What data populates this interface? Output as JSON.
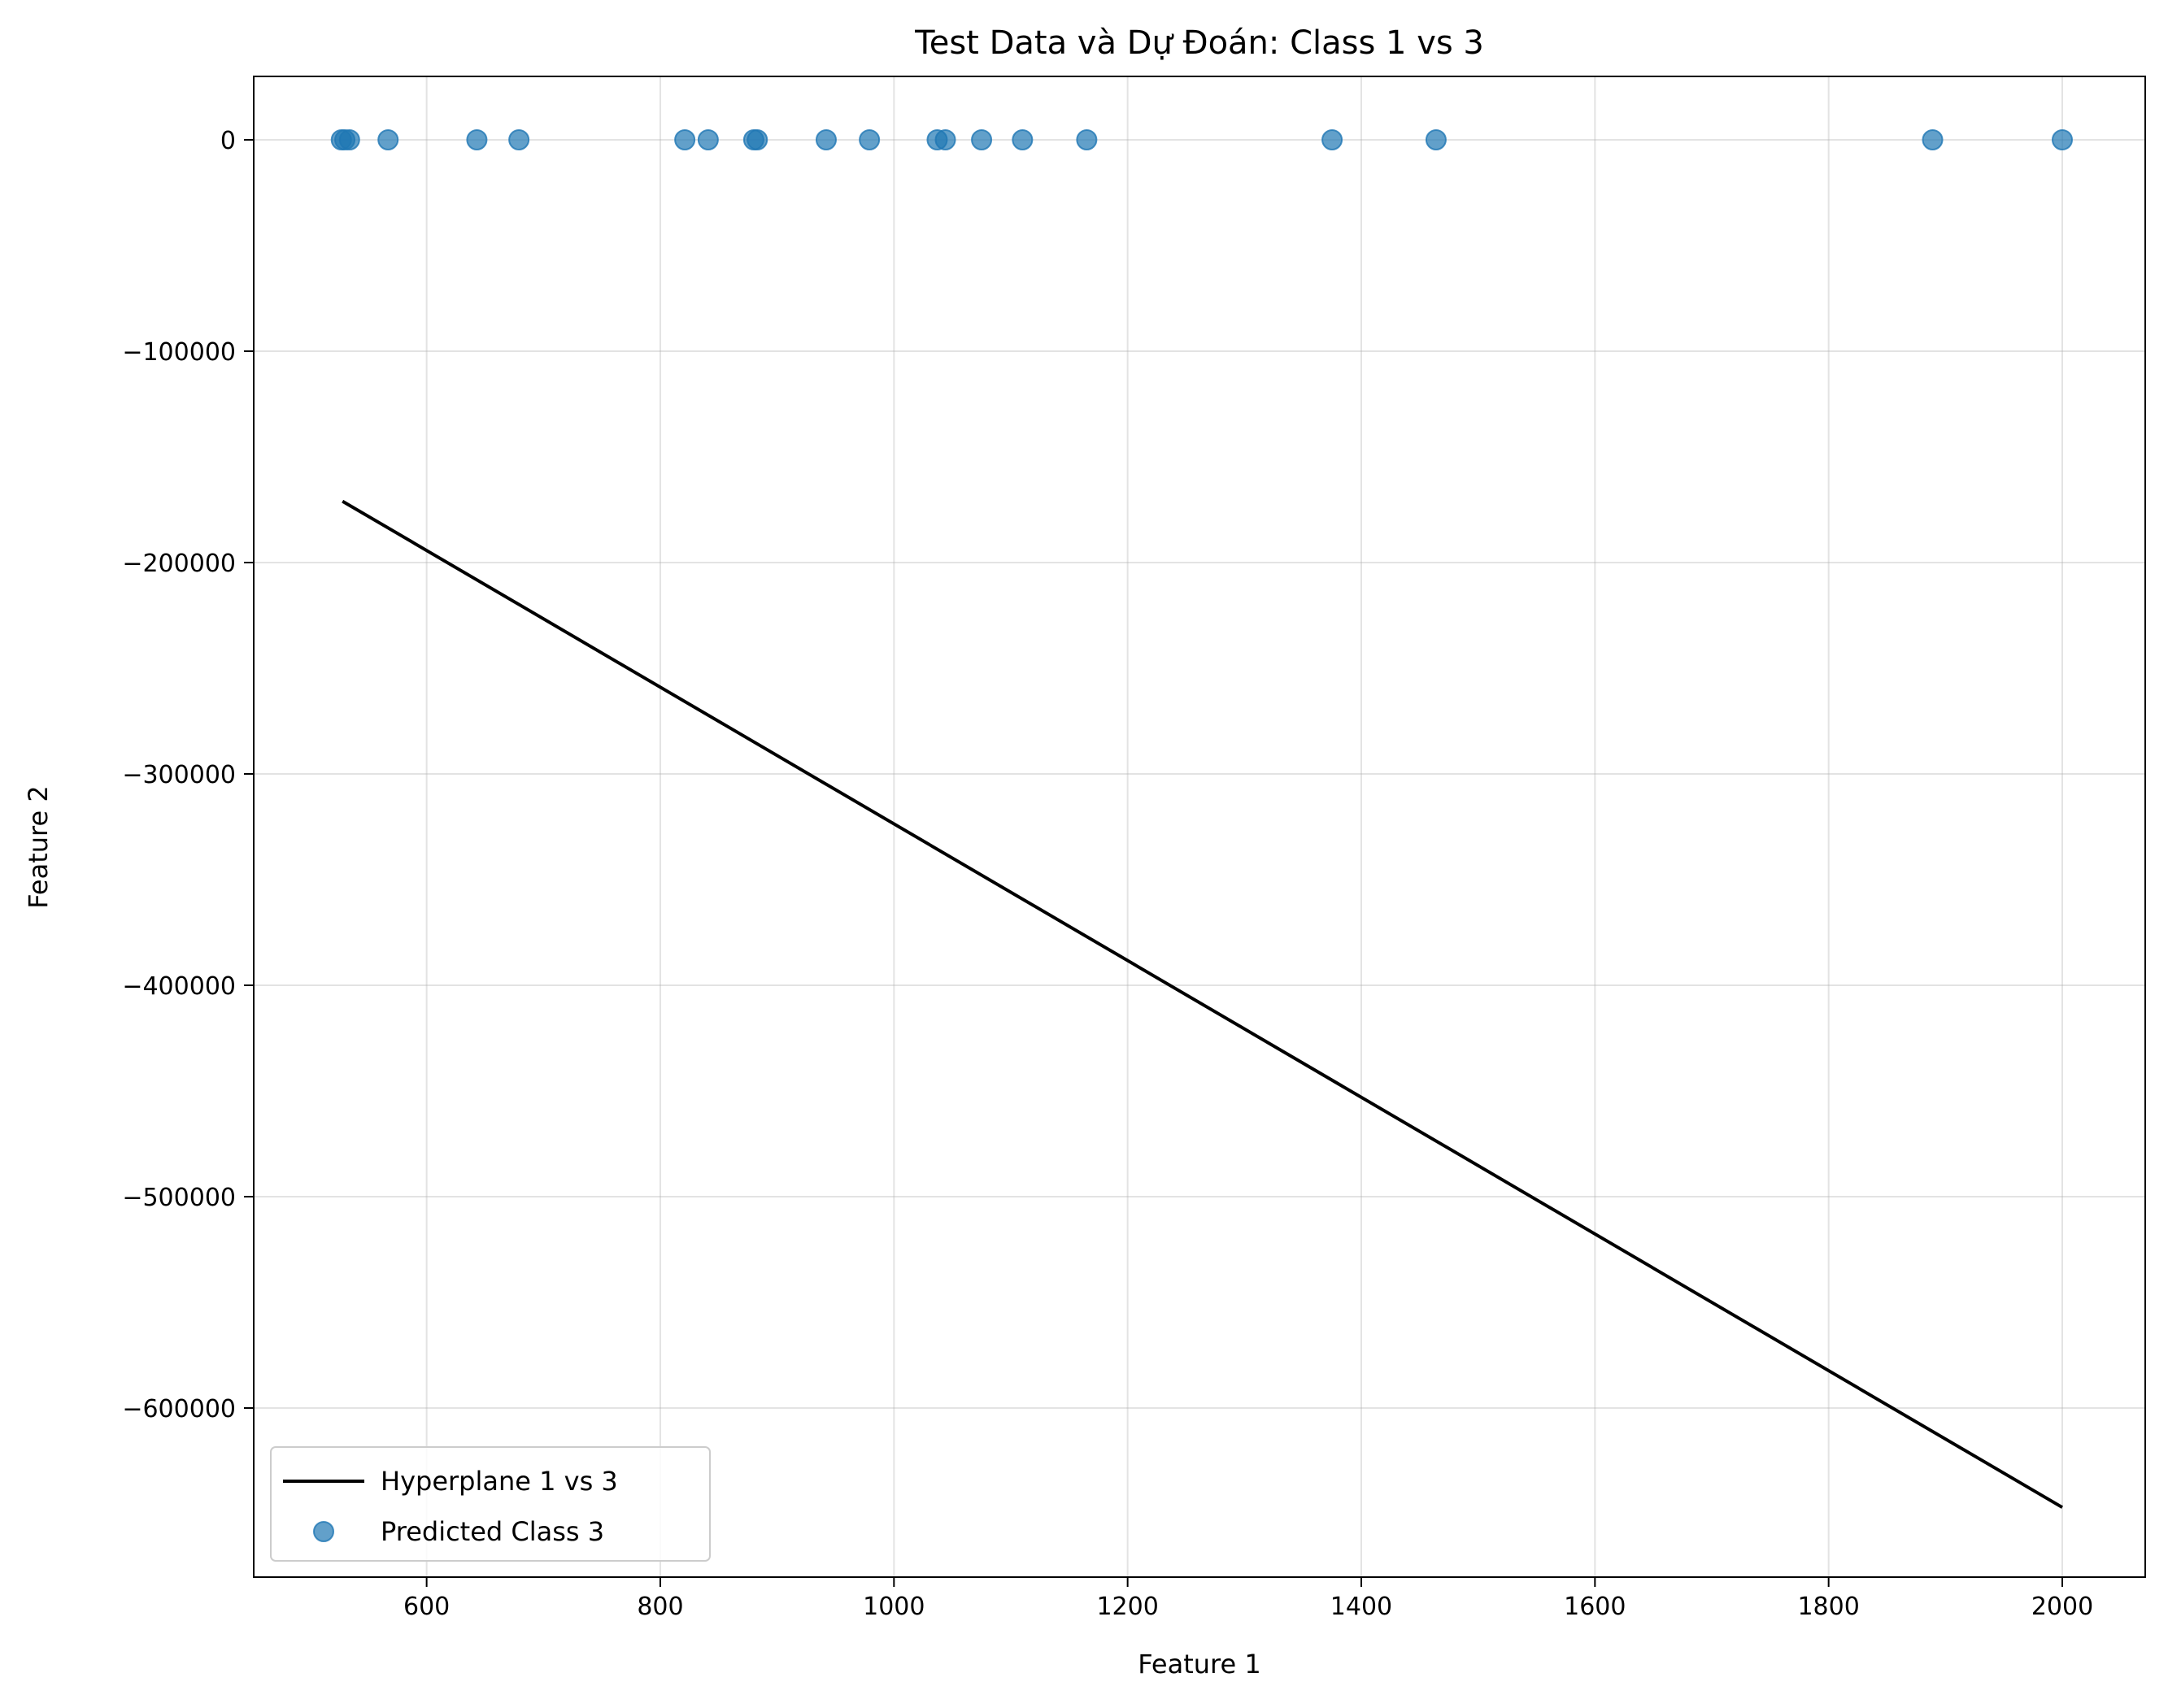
{
  "chart_data": {
    "type": "scatter",
    "title": "Test Data và Dự Đoán: Class 1 vs 3",
    "xlabel": "Feature 1",
    "ylabel": "Feature 2",
    "xlim": [
      452,
      2071
    ],
    "ylim": [
      -680000,
      30000
    ],
    "xticks": [
      600,
      800,
      1000,
      1200,
      1400,
      1600,
      1800,
      2000
    ],
    "yticks": [
      0,
      -100000,
      -200000,
      -300000,
      -400000,
      -500000,
      -600000
    ],
    "ytick_labels": [
      "0",
      "−100000",
      "−200000",
      "−300000",
      "−400000",
      "−500000",
      "−600000"
    ],
    "grid": true,
    "legend_position": "lower-left",
    "series": [
      {
        "name": "Hyperplane 1 vs 3",
        "kind": "line",
        "color": "#000000",
        "x": [
          528,
          2000
        ],
        "y": [
          -171000,
          -647000
        ]
      },
      {
        "name": "Predicted Class 3",
        "kind": "scatter",
        "color": "#1f77b4",
        "x": [
          527,
          530,
          534,
          567,
          643,
          679,
          821,
          841,
          880,
          883,
          942,
          979,
          1037,
          1044,
          1075,
          1110,
          1165,
          1375,
          1464,
          1889,
          2000
        ],
        "y": [
          0,
          0,
          0,
          0,
          0,
          0,
          0,
          0,
          0,
          0,
          0,
          0,
          0,
          0,
          0,
          0,
          0,
          0,
          0,
          0,
          0
        ]
      }
    ]
  }
}
